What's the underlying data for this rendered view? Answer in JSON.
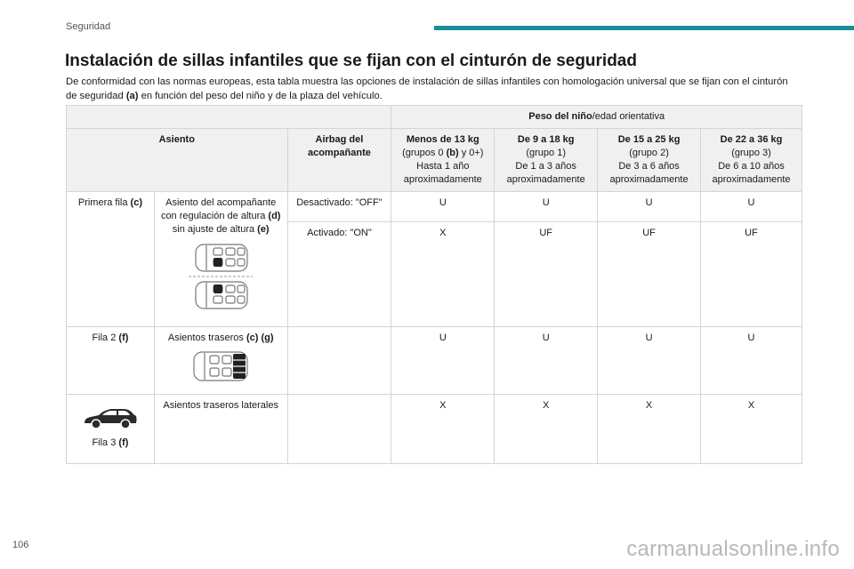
{
  "header": {
    "section": "Seguridad"
  },
  "title": "Instalación de sillas infantiles que se fijan con el cinturón de seguridad",
  "intro": {
    "text1": "De conformidad con las normas europeas, esta tabla muestra las opciones de instalación de sillas infantiles con homologación universal que se fijan con el cinturón de seguridad ",
    "ref": "(a)",
    "text2": " en función del peso del niño y de la plaza del vehículo."
  },
  "table": {
    "weight_bold": "Peso del niño",
    "weight_rest": "/edad orientativa",
    "col_asiento": "Asiento",
    "col_airbag": "Airbag del acompañante",
    "groups": [
      {
        "bold": "Menos de 13 kg",
        "l1a": "(grupos 0 ",
        "l1b": "(b)",
        "l1c": " y 0+)",
        "l2": "Hasta 1 año",
        "l3": "aproximadamente"
      },
      {
        "bold": "De 9 a 18 kg",
        "l1a": "(grupo 1)",
        "l2": "De 1 a 3 años",
        "l3": "aproximadamente"
      },
      {
        "bold": "De 15 a 25 kg",
        "l1a": "(grupo 2)",
        "l2": "De 3 a 6 años",
        "l3": "aproximadamente"
      },
      {
        "bold": "De 22 a 36 kg",
        "l1a": "(grupo 3)",
        "l2": "De 6 a 10 años",
        "l3": "aproximadamente"
      }
    ],
    "row1": {
      "label": "Primera fila ",
      "label_ref": "(c)",
      "seat_a": "Asiento del acompañante con regulación de altura ",
      "seat_a_ref": "(d)",
      "seat_b": "sin ajuste de altura ",
      "seat_b_ref": "(e)",
      "airbag_off": "Desactivado: \"OFF\"",
      "vals_off": [
        "U",
        "U",
        "U",
        "U"
      ],
      "airbag_on": "Activado: \"ON\"",
      "vals_on": [
        "X",
        "UF",
        "UF",
        "UF"
      ]
    },
    "row2": {
      "label": "Fila 2 ",
      "label_ref": "(f)",
      "seat": "Asientos traseros ",
      "seat_ref": "(c) (g)",
      "vals": [
        "U",
        "U",
        "U",
        "U"
      ]
    },
    "row3": {
      "label": "Fila 3 ",
      "label_ref": "(f)",
      "seat": "Asientos traseros laterales",
      "vals": [
        "X",
        "X",
        "X",
        "X"
      ]
    }
  },
  "page_number": "106",
  "watermark": "carmanualsonline.info",
  "colors": {
    "accent": "#1a8f9a",
    "header_bg": "#f0f0f0",
    "border": "#d4d4d4"
  }
}
